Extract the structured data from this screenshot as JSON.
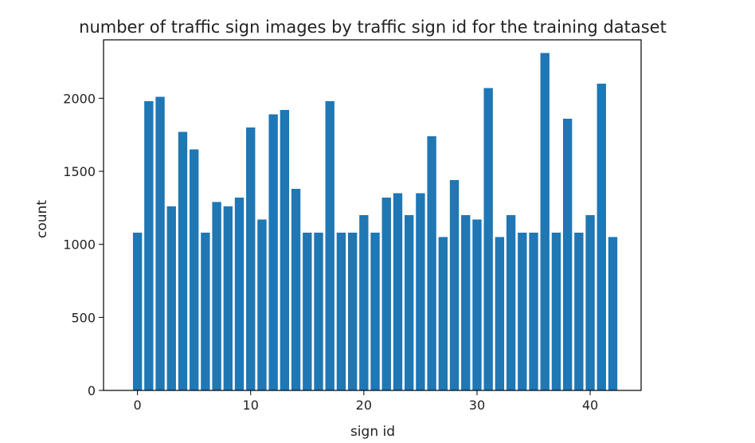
{
  "chart_data": {
    "type": "bar",
    "title": "number of traffic sign images by traffic sign id for the training dataset",
    "xlabel": "sign id",
    "ylabel": "count",
    "xlim": [
      -3,
      44.5
    ],
    "ylim": [
      0,
      2400
    ],
    "xticks": [
      0,
      10,
      20,
      30,
      40
    ],
    "yticks": [
      0,
      500,
      1000,
      1500,
      2000
    ],
    "grid": false,
    "bar_color": "#1f77b4",
    "categories": [
      0,
      1,
      2,
      3,
      4,
      5,
      6,
      7,
      8,
      9,
      10,
      11,
      12,
      13,
      14,
      15,
      16,
      17,
      18,
      19,
      20,
      21,
      22,
      23,
      24,
      25,
      26,
      27,
      28,
      29,
      30,
      31,
      32,
      33,
      34,
      35,
      36,
      37,
      38,
      39,
      40,
      41,
      42
    ],
    "values": [
      1080,
      1980,
      2010,
      1260,
      1770,
      1650,
      1080,
      1290,
      1260,
      1320,
      1800,
      1170,
      1890,
      1920,
      1380,
      1080,
      1080,
      1980,
      1080,
      1080,
      1200,
      1080,
      1320,
      1350,
      1200,
      1350,
      1740,
      1050,
      1440,
      1200,
      1170,
      2070,
      1050,
      1200,
      1080,
      1080,
      2310,
      1080,
      1860,
      1080,
      1200,
      2100,
      1050
    ]
  }
}
